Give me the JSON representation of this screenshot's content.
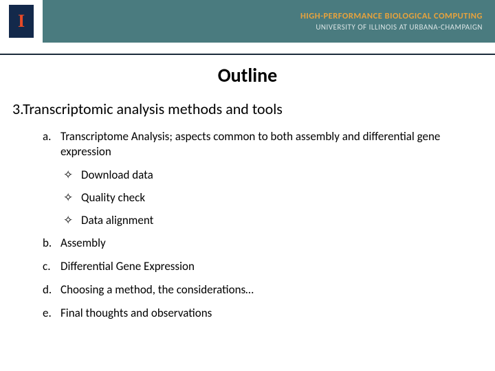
{
  "header": {
    "logo_letter": "I",
    "line1": "HIGH-PERFORMANCE BIOLOGICAL COMPUTING",
    "line2": "UNIVERSITY OF ILLINOIS AT URBANA-CHAMPAIGN",
    "colors": {
      "bar_bg": "#4a7b7f",
      "line1_color": "#e8a33d",
      "line2_color": "#d9e4e5",
      "logo_bg": "#13294b",
      "logo_fg": "#e84a27"
    }
  },
  "title": "Outline",
  "section": {
    "number": "3.",
    "text": "Transcriptomic analysis methods and tools"
  },
  "items": {
    "a": {
      "marker": "a.",
      "text": "Transcriptome Analysis; aspects common to both assembly and differential gene expression",
      "sub": [
        "Download data",
        "Quality check",
        "Data alignment"
      ]
    },
    "b": {
      "marker": "b.",
      "text": "Assembly"
    },
    "c": {
      "marker": "c.",
      "text": "Differential Gene Expression"
    },
    "d": {
      "marker": "d.",
      "text": "Choosing a method, the considerations…"
    },
    "e": {
      "marker": "e.",
      "text": "Final thoughts and observations"
    }
  },
  "bullet_glyph": "✧",
  "typography": {
    "title_fontsize": 28,
    "section_fontsize": 22,
    "item_fontsize": 17
  }
}
